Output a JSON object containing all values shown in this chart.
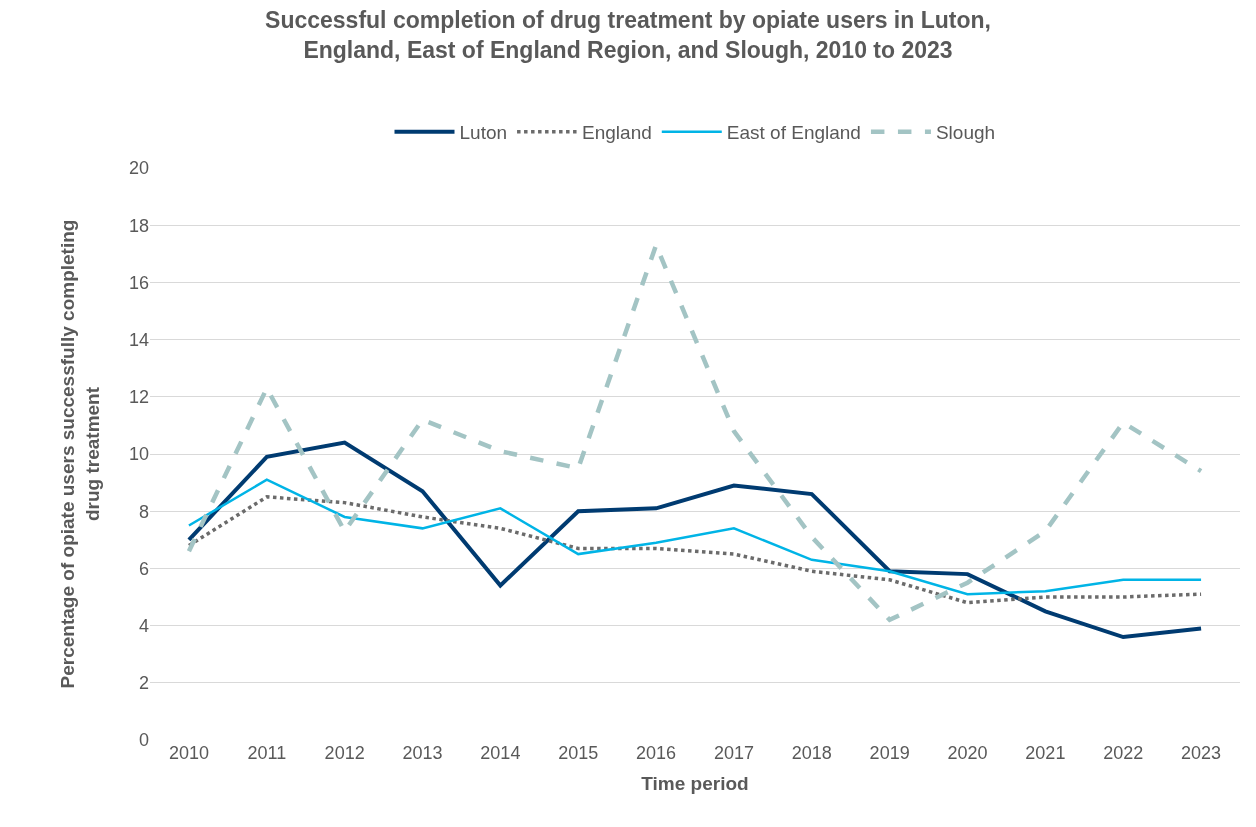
{
  "chart_data": {
    "type": "line",
    "title": "Successful completion of drug treatment by opiate users in Luton, England, East of England Region, and Slough, 2010 to 2023",
    "xlabel": "Time period",
    "ylabel": "Percentage of opiate users successfully completing drug treatment",
    "categories": [
      "2010",
      "2011",
      "2012",
      "2013",
      "2014",
      "2015",
      "2016",
      "2017",
      "2018",
      "2019",
      "2020",
      "2021",
      "2022",
      "2023"
    ],
    "series": [
      {
        "name": "Luton",
        "color": "#003b71",
        "line_style": "solid",
        "values": [
          7.0,
          9.9,
          10.4,
          8.7,
          5.4,
          8.0,
          8.1,
          8.9,
          8.6,
          5.9,
          5.8,
          4.5,
          3.6,
          3.9
        ]
      },
      {
        "name": "England",
        "color": "#6b6b6b",
        "line_style": "dotted",
        "values": [
          6.8,
          8.5,
          8.3,
          7.8,
          7.4,
          6.7,
          6.7,
          6.5,
          5.9,
          5.6,
          4.8,
          5.0,
          5.0,
          5.1
        ]
      },
      {
        "name": "East of England",
        "color": "#00b4e6",
        "line_style": "solid",
        "values": [
          7.5,
          9.1,
          7.8,
          7.4,
          8.1,
          6.5,
          6.9,
          7.4,
          6.3,
          5.9,
          5.1,
          5.2,
          5.6,
          5.6
        ]
      },
      {
        "name": "Slough",
        "color": "#a3c4c4",
        "line_style": "dashed",
        "values": [
          6.6,
          12.3,
          7.3,
          11.2,
          10.1,
          9.5,
          17.3,
          10.8,
          7.1,
          4.2,
          5.5,
          7.3,
          11.1,
          9.4
        ]
      }
    ],
    "ylim": [
      0,
      20
    ],
    "yticks": [
      0,
      2,
      4,
      6,
      8,
      10,
      12,
      14,
      16,
      18,
      20
    ],
    "grid": "y",
    "legend": "top"
  }
}
